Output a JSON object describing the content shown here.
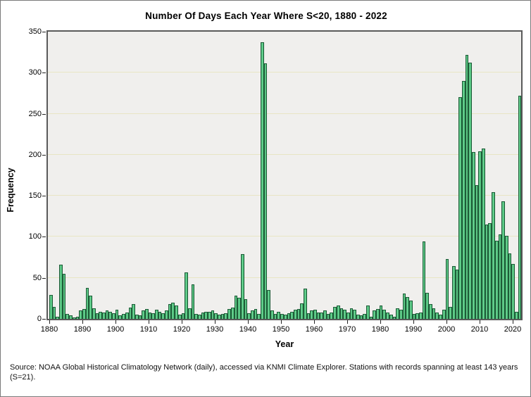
{
  "chart_data": {
    "type": "bar",
    "title": "Number Of Days Each Year Where S<20, 1880 - 2022",
    "xlabel": "Year",
    "ylabel": "Frequency",
    "ylim": [
      0,
      350
    ],
    "ytick_step": 50,
    "yticks": [
      0,
      50,
      100,
      150,
      200,
      250,
      300,
      350
    ],
    "xticks": [
      1880,
      1890,
      1900,
      1910,
      1920,
      1930,
      1940,
      1950,
      1960,
      1970,
      1980,
      1990,
      2000,
      2010,
      2020
    ],
    "year_start": 1880,
    "year_end": 2022,
    "grid": "horizontal",
    "legend": "none",
    "values": [
      29,
      15,
      3,
      66,
      55,
      6,
      4,
      2,
      3,
      10,
      12,
      38,
      28,
      13,
      7,
      9,
      8,
      10,
      9,
      7,
      11,
      4,
      6,
      8,
      14,
      18,
      5,
      4,
      10,
      12,
      8,
      7,
      11,
      9,
      7,
      10,
      18,
      20,
      16,
      5,
      7,
      57,
      13,
      42,
      6,
      5,
      8,
      9,
      9,
      10,
      7,
      5,
      6,
      7,
      12,
      14,
      28,
      26,
      79,
      24,
      7,
      10,
      12,
      6,
      337,
      311,
      35,
      10,
      6,
      9,
      6,
      5,
      7,
      9,
      11,
      12,
      19,
      37,
      7,
      10,
      11,
      8,
      8,
      10,
      6,
      8,
      15,
      16,
      13,
      11,
      8,
      13,
      11,
      5,
      4,
      6,
      16,
      3,
      10,
      12,
      16,
      11,
      8,
      5,
      3,
      13,
      11,
      31,
      27,
      22,
      6,
      7,
      8,
      94,
      32,
      18,
      13,
      8,
      5,
      11,
      73,
      15,
      64,
      60,
      270,
      290,
      322,
      312,
      203,
      163,
      204,
      208,
      115,
      117,
      154,
      95,
      103,
      143,
      101,
      80,
      67,
      9,
      272
    ],
    "colors": {
      "bar_fill": "#58cf86",
      "bar_fill_light": "#7adf9f",
      "bar_fill_dark": "#389f63",
      "bar_border": "#1e5c38",
      "plot_background": "#f0efed",
      "gridline": "#e8e5c4",
      "frame": "#5a5a5a"
    }
  },
  "source": {
    "text": "Source: NOAA Global Historical Climatology Network (daily), accessed via KNMI Climate Explorer. Stations with records spanning at least 143 years (S=21)."
  }
}
